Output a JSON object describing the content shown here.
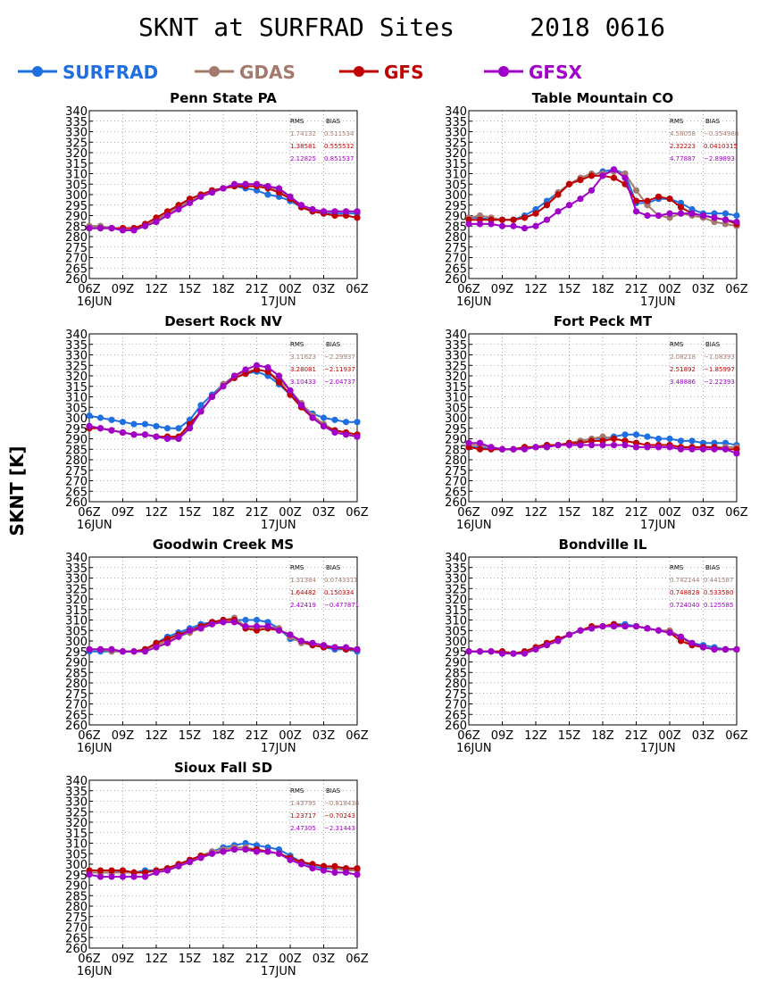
{
  "title": "SKNT at SURFRAD Sites     2018 0616",
  "ylabel": "SKNT [K]",
  "legend": [
    {
      "name": "SURFRAD",
      "color": "#1f6fe0"
    },
    {
      "name": "GDAS",
      "color": "#a57a6e"
    },
    {
      "name": "GFS",
      "color": "#c00000"
    },
    {
      "name": "GFSX",
      "color": "#a000c8"
    }
  ],
  "x_ticks": [
    "06Z",
    "09Z",
    "12Z",
    "15Z",
    "18Z",
    "21Z",
    "00Z",
    "03Z",
    "06Z"
  ],
  "date_labels": [
    "16JUN",
    "17JUN"
  ],
  "stats_headers": [
    "RMS",
    "BIAS"
  ],
  "chart_data": [
    {
      "type": "line",
      "title": "Penn State PA",
      "ylim": [
        260,
        340
      ],
      "ystep": 5,
      "x": [
        0,
        1,
        2,
        3,
        4,
        5,
        6,
        7,
        8,
        9,
        10,
        11,
        12,
        13,
        14,
        15,
        16,
        17,
        18,
        19,
        20,
        21,
        22,
        23,
        24
      ],
      "stats": [
        [
          "1.74132",
          "0.511534"
        ],
        [
          "1.38581",
          "0.555532"
        ],
        [
          "2.12825",
          "0.851537"
        ]
      ],
      "series": [
        {
          "name": "SURFRAD",
          "values": [
            285,
            285,
            284,
            283,
            283,
            285,
            288,
            291,
            294,
            297,
            300,
            302,
            303,
            304,
            303,
            302,
            300,
            299,
            297,
            294,
            292,
            291,
            291,
            291,
            291
          ]
        },
        {
          "name": "GDAS",
          "values": [
            285,
            285,
            284,
            284,
            284,
            285,
            288,
            291,
            294,
            297,
            300,
            302,
            303,
            304,
            305,
            305,
            304,
            302,
            298,
            294,
            292,
            292,
            292,
            292,
            292
          ]
        },
        {
          "name": "GFS",
          "values": [
            284,
            284,
            284,
            284,
            284,
            286,
            289,
            292,
            295,
            298,
            300,
            302,
            303,
            304,
            304,
            304,
            303,
            301,
            298,
            294,
            292,
            291,
            290,
            290,
            289
          ]
        },
        {
          "name": "GFSX",
          "values": [
            284,
            284,
            284,
            283,
            283,
            285,
            287,
            290,
            293,
            296,
            299,
            301,
            303,
            305,
            305,
            305,
            304,
            303,
            299,
            295,
            293,
            292,
            292,
            292,
            292
          ]
        }
      ]
    },
    {
      "type": "line",
      "title": "Table Mountain CO",
      "ylim": [
        260,
        340
      ],
      "ystep": 5,
      "x": [
        0,
        1,
        2,
        3,
        4,
        5,
        6,
        7,
        8,
        9,
        10,
        11,
        12,
        13,
        14,
        15,
        16,
        17,
        18,
        19,
        20,
        21,
        22,
        23,
        24
      ],
      "stats": [
        [
          "4.58058",
          "−0.354988"
        ],
        [
          "2.32223",
          "0.0410315"
        ],
        [
          "4.77887",
          "−2.89893"
        ]
      ],
      "series": [
        {
          "name": "SURFRAD",
          "values": [
            289,
            289,
            288,
            288,
            288,
            290,
            293,
            297,
            301,
            305,
            307,
            309,
            311,
            312,
            310,
            296,
            296,
            298,
            298,
            296,
            293,
            291,
            291,
            291,
            290
          ]
        },
        {
          "name": "GDAS",
          "values": [
            289,
            290,
            289,
            288,
            288,
            289,
            291,
            295,
            301,
            305,
            308,
            310,
            310,
            311,
            310,
            302,
            295,
            290,
            289,
            291,
            290,
            289,
            287,
            286,
            285
          ]
        },
        {
          "name": "GFS",
          "values": [
            288,
            288,
            288,
            288,
            288,
            289,
            291,
            295,
            300,
            305,
            307,
            309,
            309,
            308,
            305,
            297,
            297,
            299,
            298,
            294,
            291,
            290,
            289,
            288,
            286
          ]
        },
        {
          "name": "GFSX",
          "values": [
            286,
            286,
            286,
            285,
            285,
            284,
            285,
            288,
            292,
            295,
            298,
            302,
            309,
            312,
            308,
            292,
            290,
            290,
            291,
            291,
            291,
            290,
            289,
            288,
            287
          ]
        }
      ]
    },
    {
      "type": "line",
      "title": "Desert Rock NV",
      "ylim": [
        260,
        340
      ],
      "ystep": 5,
      "x": [
        0,
        1,
        2,
        3,
        4,
        5,
        6,
        7,
        8,
        9,
        10,
        11,
        12,
        13,
        14,
        15,
        16,
        17,
        18,
        19,
        20,
        21,
        22,
        23,
        24
      ],
      "stats": [
        [
          "3.11623",
          "−2.29937"
        ],
        [
          "3.28081",
          "−2.11937"
        ],
        [
          "3.10433",
          "−2.04737"
        ]
      ],
      "series": [
        {
          "name": "SURFRAD",
          "values": [
            301,
            300,
            299,
            298,
            297,
            297,
            296,
            295,
            295,
            299,
            306,
            311,
            316,
            319,
            321,
            322,
            320,
            316,
            311,
            306,
            302,
            300,
            299,
            298,
            298
          ]
        },
        {
          "name": "GDAS",
          "values": [
            296,
            295,
            294,
            293,
            292,
            292,
            291,
            291,
            290,
            296,
            303,
            310,
            316,
            320,
            322,
            323,
            322,
            318,
            313,
            307,
            301,
            297,
            294,
            293,
            292
          ]
        },
        {
          "name": "GFS",
          "values": [
            295,
            295,
            294,
            293,
            292,
            292,
            291,
            291,
            291,
            297,
            303,
            310,
            315,
            319,
            321,
            323,
            322,
            317,
            311,
            305,
            300,
            296,
            294,
            293,
            292
          ]
        },
        {
          "name": "GFSX",
          "values": [
            296,
            295,
            294,
            293,
            292,
            292,
            291,
            290,
            290,
            295,
            303,
            310,
            315,
            320,
            323,
            325,
            324,
            320,
            313,
            306,
            300,
            296,
            293,
            292,
            291
          ]
        }
      ]
    },
    {
      "type": "line",
      "title": "Fort Peck MT",
      "ylim": [
        260,
        340
      ],
      "ystep": 5,
      "x": [
        0,
        1,
        2,
        3,
        4,
        5,
        6,
        7,
        8,
        9,
        10,
        11,
        12,
        13,
        14,
        15,
        16,
        17,
        18,
        19,
        20,
        21,
        22,
        23,
        24
      ],
      "stats": [
        [
          "2.08218",
          "−1.08393"
        ],
        [
          "2.51892",
          "−1.85997"
        ],
        [
          "3.48886",
          "−2.22393"
        ]
      ],
      "series": [
        {
          "name": "SURFRAD",
          "values": [
            286,
            286,
            285,
            285,
            285,
            286,
            286,
            287,
            287,
            288,
            289,
            290,
            290,
            291,
            292,
            292,
            291,
            290,
            290,
            289,
            289,
            288,
            288,
            288,
            287
          ]
        },
        {
          "name": "GDAS",
          "values": [
            287,
            287,
            286,
            285,
            285,
            286,
            286,
            287,
            287,
            288,
            289,
            290,
            291,
            290,
            289,
            288,
            287,
            287,
            287,
            286,
            286,
            286,
            286,
            286,
            286
          ]
        },
        {
          "name": "GFS",
          "values": [
            286,
            285,
            285,
            285,
            285,
            286,
            286,
            287,
            287,
            288,
            288,
            289,
            289,
            290,
            289,
            288,
            287,
            287,
            287,
            286,
            286,
            286,
            286,
            285,
            285
          ]
        },
        {
          "name": "GFSX",
          "values": [
            288,
            288,
            286,
            285,
            285,
            285,
            286,
            286,
            287,
            287,
            287,
            287,
            287,
            287,
            287,
            286,
            286,
            286,
            286,
            285,
            285,
            285,
            285,
            285,
            283
          ]
        }
      ]
    },
    {
      "type": "line",
      "title": "Goodwin Creek MS",
      "ylim": [
        260,
        340
      ],
      "ystep": 5,
      "x": [
        0,
        1,
        2,
        3,
        4,
        5,
        6,
        7,
        8,
        9,
        10,
        11,
        12,
        13,
        14,
        15,
        16,
        17,
        18,
        19,
        20,
        21,
        22,
        23,
        24
      ],
      "stats": [
        [
          "1.31384",
          "0.0743311"
        ],
        [
          "1.64482",
          "0.150334"
        ],
        [
          "2.42419",
          "−0.477871"
        ]
      ],
      "series": [
        {
          "name": "SURFRAD",
          "values": [
            295,
            295,
            295,
            295,
            295,
            296,
            299,
            302,
            304,
            306,
            308,
            309,
            310,
            310,
            310,
            310,
            309,
            306,
            301,
            300,
            298,
            297,
            296,
            296,
            295
          ]
        },
        {
          "name": "GDAS",
          "values": [
            296,
            296,
            295,
            295,
            295,
            296,
            298,
            300,
            302,
            304,
            306,
            308,
            310,
            311,
            307,
            306,
            307,
            306,
            302,
            299,
            298,
            297,
            297,
            296,
            296
          ]
        },
        {
          "name": "GFS",
          "values": [
            296,
            296,
            296,
            295,
            295,
            296,
            299,
            301,
            303,
            305,
            307,
            309,
            310,
            310,
            306,
            305,
            306,
            305,
            303,
            300,
            298,
            297,
            297,
            296,
            296
          ]
        },
        {
          "name": "GFSX",
          "values": [
            296,
            296,
            296,
            295,
            295,
            295,
            297,
            299,
            302,
            305,
            306,
            308,
            309,
            309,
            307,
            307,
            307,
            305,
            303,
            300,
            299,
            298,
            297,
            297,
            296
          ]
        }
      ]
    },
    {
      "type": "line",
      "title": "Bondville IL",
      "ylim": [
        260,
        340
      ],
      "ystep": 5,
      "x": [
        0,
        1,
        2,
        3,
        4,
        5,
        6,
        7,
        8,
        9,
        10,
        11,
        12,
        13,
        14,
        15,
        16,
        17,
        18,
        19,
        20,
        21,
        22,
        23,
        24
      ],
      "stats": [
        [
          "0.742144",
          "0.441587"
        ],
        [
          "0.748828",
          "0.533580"
        ],
        [
          "0.724040",
          "0.125585"
        ]
      ],
      "series": [
        {
          "name": "SURFRAD",
          "values": [
            295,
            295,
            295,
            295,
            294,
            295,
            297,
            299,
            301,
            303,
            305,
            306,
            307,
            308,
            308,
            307,
            306,
            305,
            304,
            302,
            299,
            298,
            297,
            296,
            296
          ]
        },
        {
          "name": "GDAS",
          "values": [
            295,
            295,
            295,
            295,
            294,
            295,
            297,
            299,
            301,
            303,
            305,
            306,
            307,
            307,
            307,
            307,
            306,
            305,
            305,
            302,
            298,
            297,
            296,
            296,
            296
          ]
        },
        {
          "name": "GFS",
          "values": [
            295,
            295,
            295,
            295,
            294,
            295,
            297,
            299,
            301,
            303,
            305,
            307,
            307,
            308,
            307,
            307,
            306,
            305,
            304,
            300,
            298,
            297,
            296,
            296,
            296
          ]
        },
        {
          "name": "GFSX",
          "values": [
            295,
            295,
            295,
            294,
            294,
            294,
            296,
            298,
            300,
            303,
            305,
            306,
            307,
            307,
            307,
            307,
            306,
            305,
            304,
            302,
            299,
            297,
            296,
            296,
            296
          ]
        }
      ]
    },
    {
      "type": "line",
      "title": "Sioux Fall SD",
      "ylim": [
        260,
        340
      ],
      "ystep": 5,
      "x": [
        0,
        1,
        2,
        3,
        4,
        5,
        6,
        7,
        8,
        9,
        10,
        11,
        12,
        13,
        14,
        15,
        16,
        17,
        18,
        19,
        20,
        21,
        22,
        23,
        24
      ],
      "stats": [
        [
          "1.43795",
          "−0.818438"
        ],
        [
          "1.23717",
          "−0.70243"
        ],
        [
          "2.47305",
          "−2.31443"
        ]
      ],
      "series": [
        {
          "name": "SURFRAD",
          "values": [
            296,
            296,
            296,
            297,
            296,
            297,
            297,
            298,
            300,
            302,
            304,
            306,
            308,
            309,
            310,
            309,
            308,
            307,
            304,
            301,
            299,
            298,
            298,
            298,
            298
          ]
        },
        {
          "name": "GDAS",
          "values": [
            296,
            296,
            296,
            296,
            296,
            296,
            297,
            298,
            300,
            302,
            304,
            306,
            307,
            308,
            308,
            307,
            306,
            305,
            303,
            301,
            300,
            299,
            298,
            297,
            297
          ]
        },
        {
          "name": "GFS",
          "values": [
            297,
            297,
            297,
            297,
            296,
            296,
            297,
            298,
            300,
            302,
            304,
            305,
            306,
            307,
            307,
            307,
            306,
            305,
            303,
            301,
            300,
            299,
            299,
            298,
            298
          ]
        },
        {
          "name": "GFSX",
          "values": [
            295,
            294,
            294,
            294,
            294,
            294,
            296,
            297,
            299,
            301,
            303,
            305,
            306,
            307,
            307,
            306,
            306,
            305,
            302,
            300,
            298,
            297,
            296,
            296,
            295
          ]
        }
      ]
    }
  ]
}
